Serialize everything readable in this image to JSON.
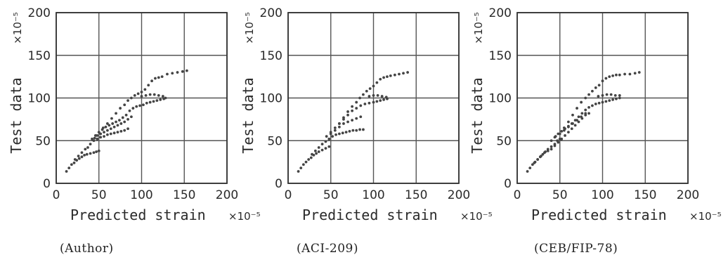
{
  "chart_data": [
    {
      "type": "scatter",
      "caption": "(Author)",
      "xlabel": "Predicted strain",
      "ylabel": "Test data",
      "x_unit": "×10⁻⁵",
      "y_unit": "×10⁻⁵",
      "xlim": [
        0,
        200
      ],
      "ylim": [
        0,
        200
      ],
      "x_ticks": [
        0,
        50,
        100,
        150,
        200
      ],
      "y_ticks": [
        0,
        50,
        100,
        150,
        200
      ],
      "grid": true,
      "points": [
        [
          12,
          14
        ],
        [
          15,
          18
        ],
        [
          18,
          22
        ],
        [
          21,
          24
        ],
        [
          24,
          27
        ],
        [
          27,
          29
        ],
        [
          30,
          31
        ],
        [
          33,
          33
        ],
        [
          36,
          34
        ],
        [
          40,
          35
        ],
        [
          44,
          36
        ],
        [
          47,
          37
        ],
        [
          50,
          38
        ],
        [
          22,
          28
        ],
        [
          26,
          32
        ],
        [
          30,
          36
        ],
        [
          34,
          40
        ],
        [
          37,
          42
        ],
        [
          40,
          46
        ],
        [
          44,
          50
        ],
        [
          48,
          52
        ],
        [
          52,
          54
        ],
        [
          56,
          55
        ],
        [
          60,
          57
        ],
        [
          64,
          58
        ],
        [
          68,
          59
        ],
        [
          72,
          60
        ],
        [
          76,
          61
        ],
        [
          80,
          62
        ],
        [
          84,
          64
        ],
        [
          42,
          52
        ],
        [
          46,
          56
        ],
        [
          50,
          60
        ],
        [
          54,
          63
        ],
        [
          58,
          66
        ],
        [
          62,
          68
        ],
        [
          66,
          70
        ],
        [
          70,
          72
        ],
        [
          74,
          74
        ],
        [
          78,
          77
        ],
        [
          82,
          80
        ],
        [
          86,
          85
        ],
        [
          90,
          88
        ],
        [
          94,
          90
        ],
        [
          98,
          91
        ],
        [
          102,
          92
        ],
        [
          106,
          94
        ],
        [
          110,
          95
        ],
        [
          114,
          96
        ],
        [
          118,
          97
        ],
        [
          122,
          98
        ],
        [
          126,
          99
        ],
        [
          128,
          100
        ],
        [
          45,
          53
        ],
        [
          48,
          56
        ],
        [
          52,
          58
        ],
        [
          56,
          60
        ],
        [
          60,
          62
        ],
        [
          64,
          64
        ],
        [
          68,
          66
        ],
        [
          72,
          68
        ],
        [
          76,
          70
        ],
        [
          80,
          72
        ],
        [
          84,
          75
        ],
        [
          88,
          78
        ],
        [
          55,
          65
        ],
        [
          60,
          70
        ],
        [
          65,
          76
        ],
        [
          70,
          82
        ],
        [
          75,
          88
        ],
        [
          80,
          92
        ],
        [
          84,
          97
        ],
        [
          88,
          100
        ],
        [
          92,
          103
        ],
        [
          96,
          105
        ],
        [
          100,
          107
        ],
        [
          104,
          110
        ],
        [
          108,
          115
        ],
        [
          112,
          120
        ],
        [
          116,
          123
        ],
        [
          120,
          124
        ],
        [
          124,
          125
        ],
        [
          130,
          128
        ],
        [
          136,
          129
        ],
        [
          142,
          130
        ],
        [
          148,
          131
        ],
        [
          153,
          132
        ],
        [
          100,
          102
        ],
        [
          105,
          103
        ],
        [
          110,
          104
        ],
        [
          115,
          104
        ],
        [
          120,
          103
        ],
        [
          125,
          102
        ]
      ]
    },
    {
      "type": "scatter",
      "caption": "(ACI-209)",
      "xlabel": "Predicted strain",
      "ylabel": "Test data",
      "x_unit": "×10⁻⁵",
      "y_unit": "×10⁻⁵",
      "xlim": [
        0,
        200
      ],
      "ylim": [
        0,
        200
      ],
      "x_ticks": [
        0,
        50,
        100,
        150,
        200
      ],
      "y_ticks": [
        0,
        50,
        100,
        150,
        200
      ],
      "grid": true,
      "points": [
        [
          12,
          14
        ],
        [
          15,
          18
        ],
        [
          18,
          22
        ],
        [
          21,
          25
        ],
        [
          24,
          28
        ],
        [
          27,
          30
        ],
        [
          30,
          33
        ],
        [
          33,
          35
        ],
        [
          36,
          37
        ],
        [
          40,
          39
        ],
        [
          44,
          41
        ],
        [
          48,
          43
        ],
        [
          28,
          34
        ],
        [
          32,
          38
        ],
        [
          36,
          42
        ],
        [
          40,
          46
        ],
        [
          44,
          49
        ],
        [
          48,
          52
        ],
        [
          52,
          55
        ],
        [
          56,
          57
        ],
        [
          60,
          58
        ],
        [
          64,
          59
        ],
        [
          68,
          60
        ],
        [
          72,
          61
        ],
        [
          76,
          62
        ],
        [
          80,
          62
        ],
        [
          84,
          63
        ],
        [
          88,
          63
        ],
        [
          45,
          55
        ],
        [
          50,
          60
        ],
        [
          55,
          65
        ],
        [
          60,
          70
        ],
        [
          65,
          75
        ],
        [
          70,
          80
        ],
        [
          75,
          85
        ],
        [
          80,
          88
        ],
        [
          85,
          91
        ],
        [
          90,
          93
        ],
        [
          95,
          94
        ],
        [
          100,
          95
        ],
        [
          104,
          96
        ],
        [
          108,
          97
        ],
        [
          112,
          98
        ],
        [
          116,
          99
        ],
        [
          50,
          58
        ],
        [
          55,
          62
        ],
        [
          60,
          66
        ],
        [
          65,
          70
        ],
        [
          70,
          72
        ],
        [
          75,
          74
        ],
        [
          80,
          76
        ],
        [
          85,
          78
        ],
        [
          60,
          70
        ],
        [
          65,
          77
        ],
        [
          70,
          84
        ],
        [
          75,
          90
        ],
        [
          80,
          95
        ],
        [
          84,
          100
        ],
        [
          88,
          104
        ],
        [
          92,
          108
        ],
        [
          96,
          111
        ],
        [
          100,
          114
        ],
        [
          104,
          118
        ],
        [
          108,
          122
        ],
        [
          112,
          124
        ],
        [
          116,
          125
        ],
        [
          120,
          126
        ],
        [
          125,
          127
        ],
        [
          130,
          128
        ],
        [
          135,
          129
        ],
        [
          140,
          130
        ],
        [
          95,
          102
        ],
        [
          100,
          103
        ],
        [
          105,
          103
        ],
        [
          110,
          102
        ],
        [
          115,
          101
        ]
      ]
    },
    {
      "type": "scatter",
      "caption": "(CEB/FIP-78)",
      "xlabel": "Predicted strain",
      "ylabel": "Test data",
      "x_unit": "×10⁻⁵",
      "y_unit": "×10⁻⁵",
      "xlim": [
        0,
        200
      ],
      "ylim": [
        0,
        200
      ],
      "x_ticks": [
        0,
        50,
        100,
        150,
        200
      ],
      "y_ticks": [
        0,
        50,
        100,
        150,
        200
      ],
      "grid": true,
      "points": [
        [
          12,
          14
        ],
        [
          15,
          18
        ],
        [
          18,
          22
        ],
        [
          21,
          25
        ],
        [
          24,
          28
        ],
        [
          27,
          31
        ],
        [
          30,
          34
        ],
        [
          33,
          37
        ],
        [
          36,
          40
        ],
        [
          40,
          43
        ],
        [
          44,
          46
        ],
        [
          47,
          50
        ],
        [
          50,
          52
        ],
        [
          20,
          24
        ],
        [
          24,
          28
        ],
        [
          28,
          32
        ],
        [
          32,
          36
        ],
        [
          36,
          38
        ],
        [
          40,
          40
        ],
        [
          44,
          44
        ],
        [
          48,
          48
        ],
        [
          52,
          52
        ],
        [
          56,
          56
        ],
        [
          60,
          60
        ],
        [
          64,
          64
        ],
        [
          68,
          68
        ],
        [
          72,
          72
        ],
        [
          76,
          76
        ],
        [
          80,
          80
        ],
        [
          84,
          82
        ],
        [
          40,
          50
        ],
        [
          44,
          54
        ],
        [
          48,
          58
        ],
        [
          52,
          61
        ],
        [
          56,
          64
        ],
        [
          60,
          67
        ],
        [
          64,
          70
        ],
        [
          68,
          74
        ],
        [
          72,
          78
        ],
        [
          76,
          82
        ],
        [
          80,
          86
        ],
        [
          84,
          89
        ],
        [
          88,
          91
        ],
        [
          92,
          93
        ],
        [
          96,
          94
        ],
        [
          100,
          95
        ],
        [
          104,
          96
        ],
        [
          108,
          97
        ],
        [
          112,
          98
        ],
        [
          116,
          99
        ],
        [
          120,
          100
        ],
        [
          45,
          55
        ],
        [
          50,
          58
        ],
        [
          55,
          62
        ],
        [
          60,
          66
        ],
        [
          65,
          70
        ],
        [
          70,
          74
        ],
        [
          75,
          78
        ],
        [
          80,
          82
        ],
        [
          55,
          65
        ],
        [
          60,
          72
        ],
        [
          65,
          80
        ],
        [
          70,
          88
        ],
        [
          75,
          95
        ],
        [
          80,
          100
        ],
        [
          84,
          104
        ],
        [
          88,
          108
        ],
        [
          92,
          112
        ],
        [
          96,
          115
        ],
        [
          100,
          120
        ],
        [
          104,
          123
        ],
        [
          108,
          125
        ],
        [
          112,
          126
        ],
        [
          116,
          127
        ],
        [
          120,
          127
        ],
        [
          126,
          128
        ],
        [
          132,
          128
        ],
        [
          138,
          129
        ],
        [
          143,
          130
        ],
        [
          95,
          102
        ],
        [
          100,
          103
        ],
        [
          105,
          104
        ],
        [
          110,
          104
        ],
        [
          115,
          103
        ],
        [
          120,
          103
        ]
      ]
    }
  ]
}
